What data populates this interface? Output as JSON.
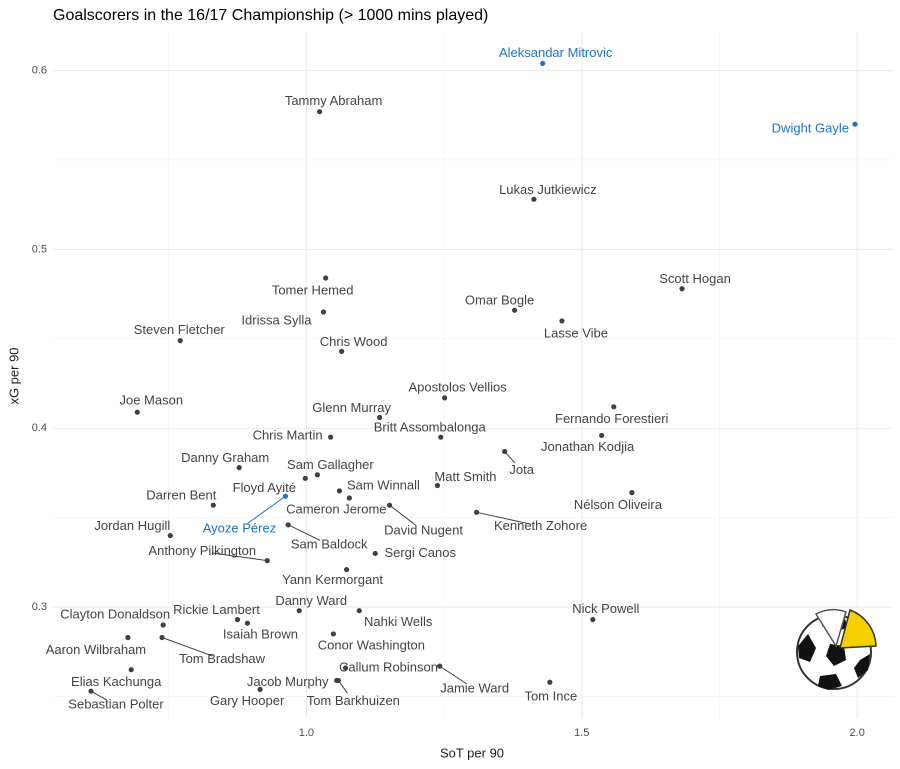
{
  "chart_data": {
    "type": "scatter",
    "title": "Goalscorers in the 16/17 Championship (> 1000 mins played)",
    "x_label": "SoT per 90",
    "y_label": "xG per 90",
    "xlim": [
      0.54,
      2.065
    ],
    "ylim": [
      0.238,
      0.621
    ],
    "xticks": [
      {
        "value": 1,
        "label": "1.0"
      },
      1.5,
      {
        "value": 2,
        "label": "2.0"
      }
    ],
    "yticks": [
      0.3,
      0.4,
      0.5,
      0.6
    ],
    "x_minor_grid": [
      0.75,
      1.25,
      1.75
    ],
    "y_minor_grid": [
      0.25,
      0.35,
      0.45,
      0.55
    ],
    "grid": true,
    "labels": [
      "Aleksandar Mitrovic",
      "Dwight Gayle",
      "Tammy Abraham",
      "Lukas Jutkiewicz",
      "Scott Hogan",
      "Tomer Hemed",
      "Omar Bogle",
      "Idrissa Sylla",
      "Lasse Vibe",
      "Steven Fletcher",
      "Chris Wood",
      "Apostolos Vellios",
      "Joe Mason",
      "Glenn Murray",
      "Fernando Forestieri",
      "Chris Martin",
      "Britt Assombalonga",
      "Jonathan Kodjia",
      "Danny Graham",
      "Jota",
      "Sam Gallagher",
      "Matt Smith",
      "Floyd Ayité",
      "Sam Winnall",
      "Darren Bent",
      "Nélson Oliveira",
      "Ayoze Pérez",
      "Cameron Jerome",
      "David Nugent",
      "Kenneth Zohore",
      "Jordan Hugill",
      "Sam Baldock",
      "Sergi Canos",
      "Anthony Pilkington",
      "Yann Kermorgant",
      "Danny Ward",
      "Rickie Lambert",
      "Nick Powell",
      "Nahki Wells",
      "Clayton Donaldson",
      "Isaiah Brown",
      "Aaron Wilbraham",
      "Conor Washington",
      "Tom Bradshaw",
      "Callum Robinson",
      "Jamie Ward",
      "Elias Kachunga",
      "Jacob Murphy",
      "Tom Ince",
      "Tom Barkhuizen",
      "Sebastian Polter",
      "Gary Hooper"
    ],
    "x": [
      1.429,
      1.996,
      1.024,
      1.413,
      1.682,
      1.035,
      1.378,
      1.031,
      1.464,
      0.771,
      1.064,
      1.251,
      0.693,
      1.133,
      1.558,
      1.044,
      1.244,
      1.536,
      0.878,
      1.36,
      1.02,
      1.238,
      0.998,
      1.06,
      0.831,
      1.591,
      0.962,
      1.078,
      1.151,
      1.309,
      0.753,
      0.967,
      1.125,
      0.929,
      1.073,
      0.987,
      0.875,
      1.52,
      1.096,
      0.74,
      0.893,
      0.676,
      1.049,
      0.738,
      1.071,
      1.242,
      0.682,
      1.055,
      1.442,
      1.058,
      0.609,
      0.916
    ],
    "values": [
      0.604,
      0.57,
      0.577,
      0.528,
      0.478,
      0.484,
      0.466,
      0.465,
      0.46,
      0.449,
      0.443,
      0.417,
      0.409,
      0.406,
      0.412,
      0.395,
      0.395,
      0.396,
      0.378,
      0.387,
      0.374,
      0.368,
      0.372,
      0.365,
      0.357,
      0.364,
      0.362,
      0.361,
      0.357,
      0.353,
      0.34,
      0.346,
      0.33,
      0.326,
      0.321,
      0.298,
      0.293,
      0.293,
      0.298,
      0.29,
      0.291,
      0.283,
      0.285,
      0.283,
      0.266,
      0.267,
      0.265,
      0.259,
      0.258,
      0.259,
      0.253,
      0.254
    ],
    "point_colors": [
      "#1f72c4",
      "#1f72c4",
      "#404040",
      "#404040",
      "#404040",
      "#404040",
      "#404040",
      "#404040",
      "#404040",
      "#404040",
      "#404040",
      "#404040",
      "#404040",
      "#404040",
      "#404040",
      "#404040",
      "#404040",
      "#404040",
      "#404040",
      "#404040",
      "#404040",
      "#404040",
      "#404040",
      "#404040",
      "#404040",
      "#404040",
      "#1f72c4",
      "#404040",
      "#404040",
      "#404040",
      "#404040",
      "#404040",
      "#404040",
      "#404040",
      "#404040",
      "#404040",
      "#404040",
      "#404040",
      "#404040",
      "#404040",
      "#404040",
      "#404040",
      "#404040",
      "#404040",
      "#404040",
      "#404040",
      "#404040",
      "#404040",
      "#404040",
      "#404040",
      "#404040",
      "#404040"
    ]
  }
}
